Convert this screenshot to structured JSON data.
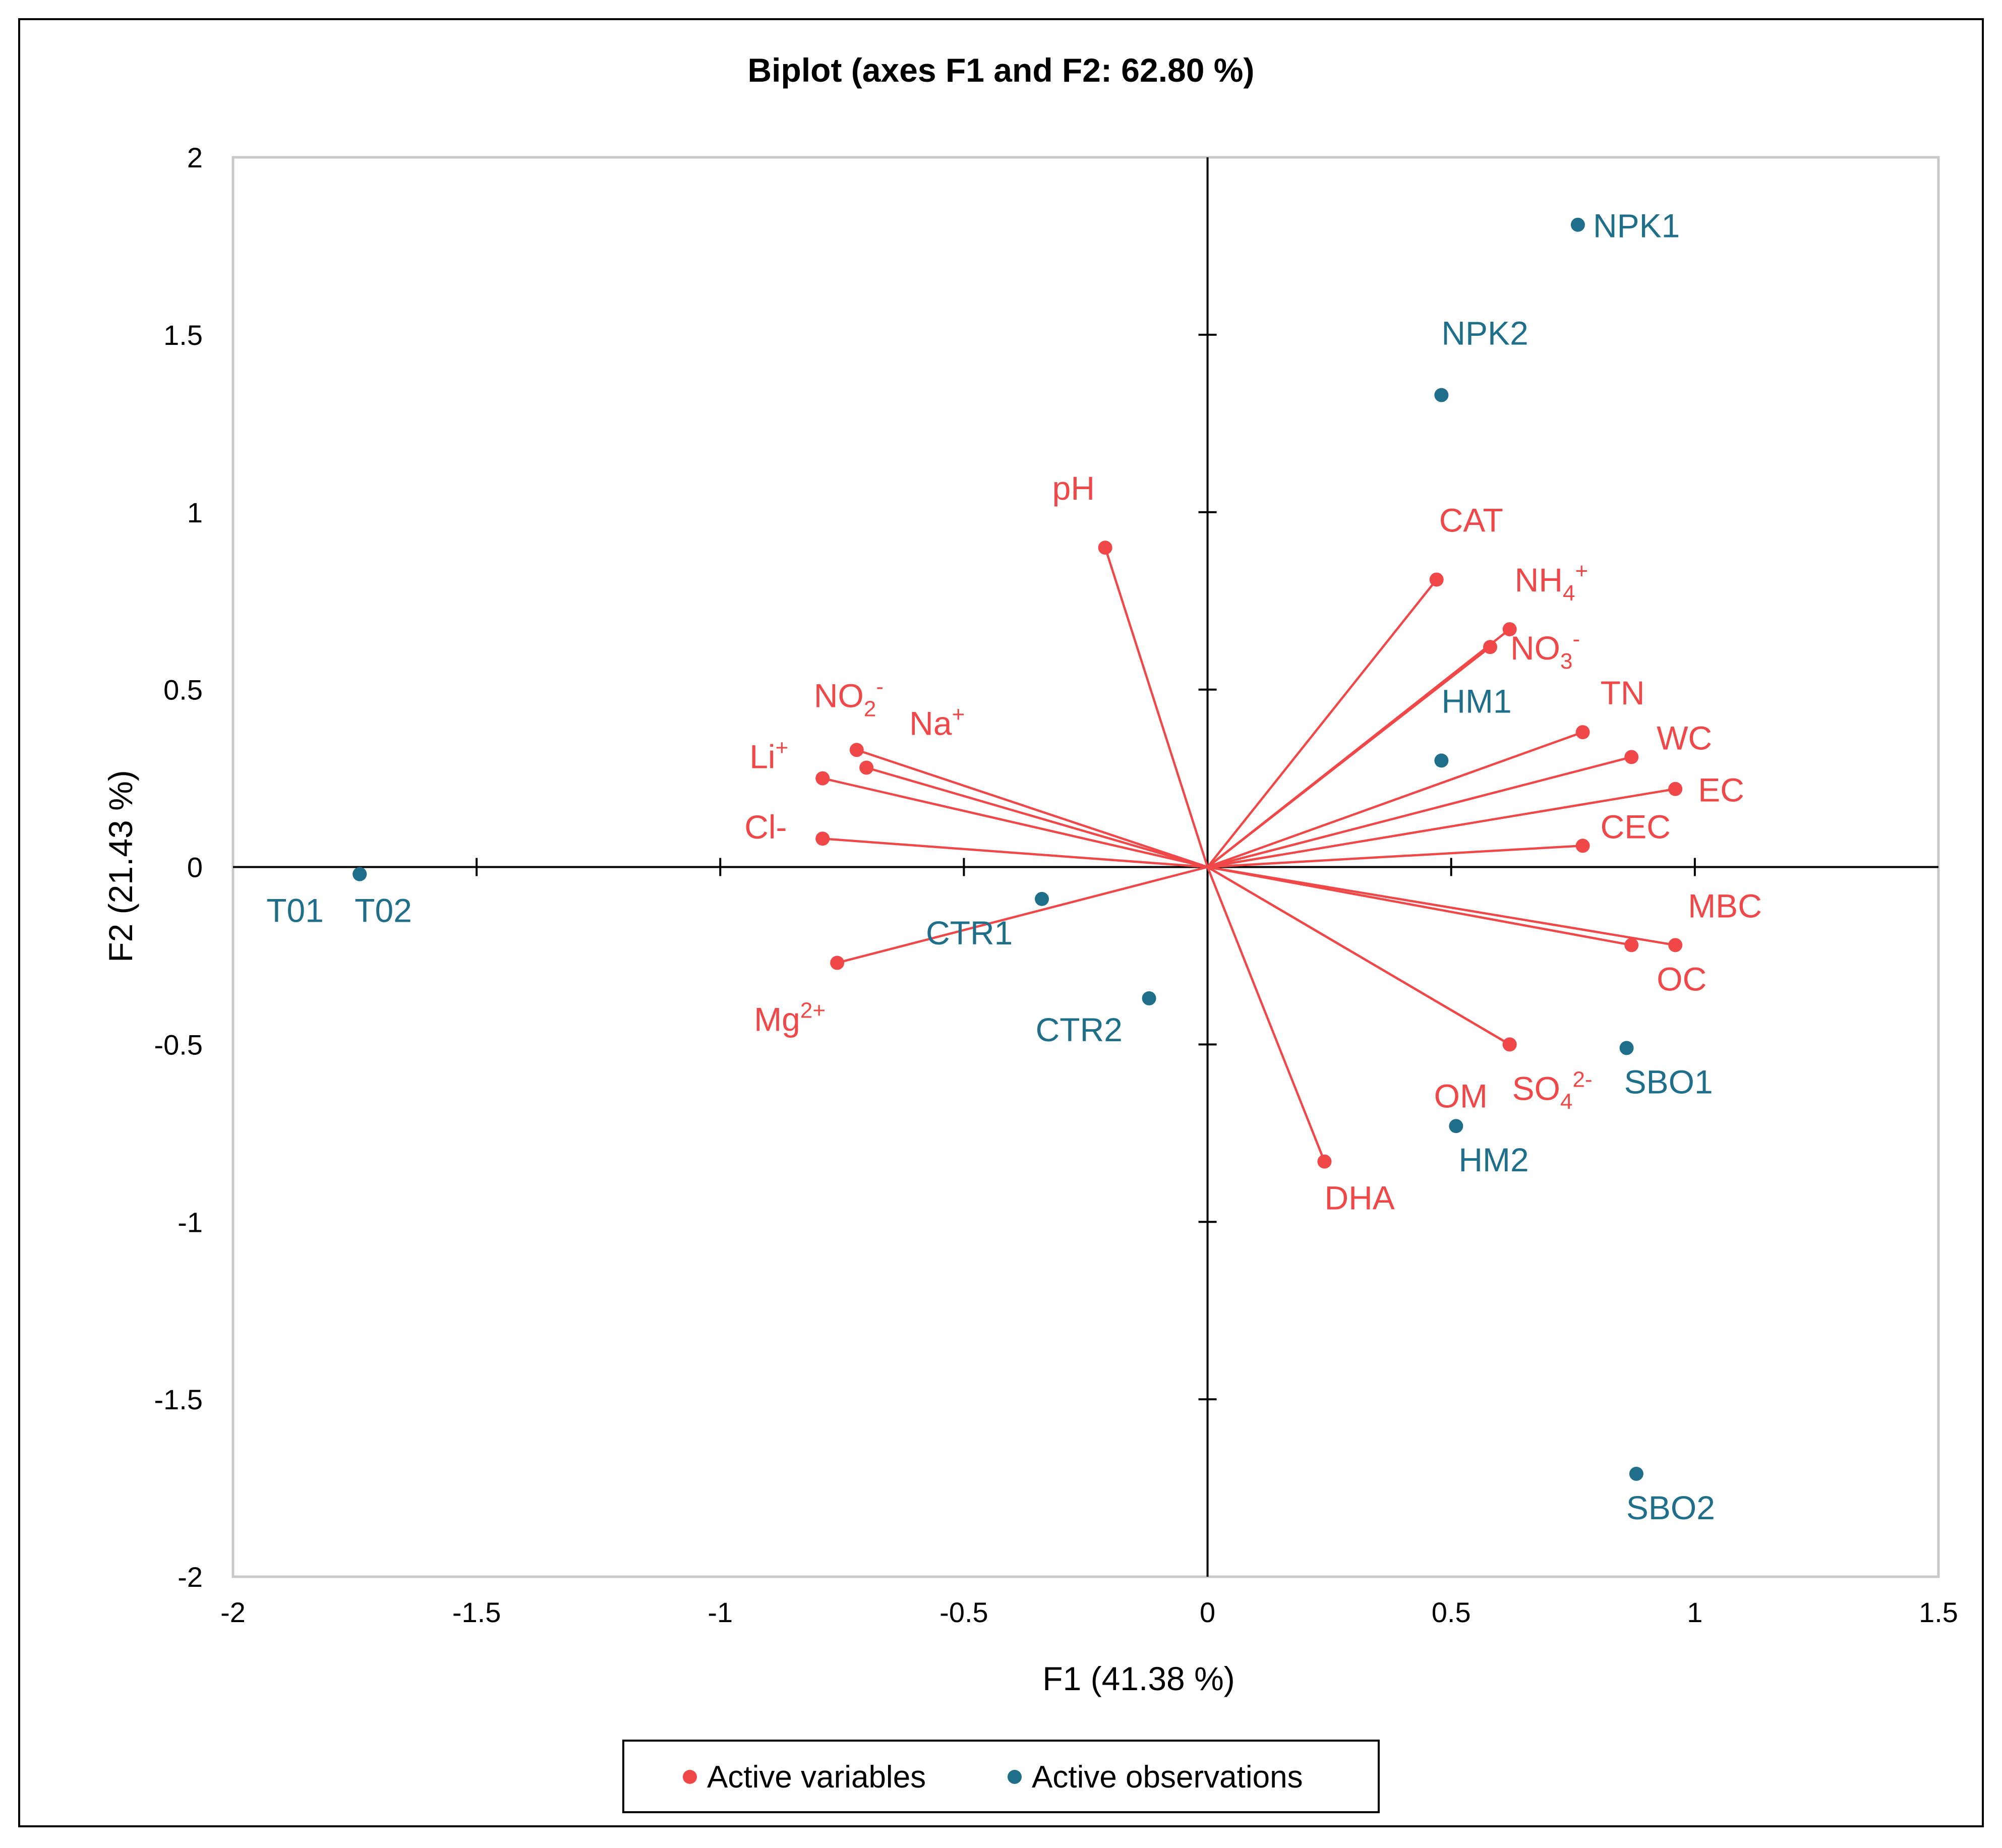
{
  "chart_data": {
    "type": "scatter",
    "title": "Biplot (axes F1 and F2: 62.80 %)",
    "xlabel": "F1 (41.38 %)",
    "ylabel": "F2 (21.43 %)",
    "xlim": [
      -2,
      1.5
    ],
    "ylim": [
      -2,
      2
    ],
    "xticks": [
      -2,
      -1.5,
      -1,
      -0.5,
      0,
      0.5,
      1,
      1.5
    ],
    "yticks": [
      -2,
      -1.5,
      -1,
      -0.5,
      0,
      0.5,
      1,
      1.5,
      2
    ],
    "xtick_labels": [
      "-2",
      "-1.5",
      "-1",
      "-0.5",
      "0",
      "0.5",
      "1",
      "1.5"
    ],
    "ytick_labels": [
      "-2",
      "-1.5",
      "-1",
      "-0.5",
      "0",
      "0.5",
      "1",
      "1.5",
      "2"
    ],
    "grid": false,
    "legend_position": "bottom",
    "colors": {
      "variables": "#f04848",
      "observations": "#1f6f8b",
      "frame": "#c8c8c8"
    },
    "series": [
      {
        "name": "Active variables",
        "vectors": true,
        "points": [
          {
            "label": "pH",
            "base": "pH",
            "x": -0.21,
            "y": 0.9
          },
          {
            "label": "CAT",
            "base": "CAT",
            "x": 0.47,
            "y": 0.81
          },
          {
            "label": "NH4+",
            "base": "NH",
            "sub": "4",
            "sup": "+",
            "x": 0.62,
            "y": 0.67
          },
          {
            "label": "NO3-",
            "base": "NO",
            "sub": "3",
            "sup": "-",
            "x": 0.58,
            "y": 0.62
          },
          {
            "label": "TN",
            "base": "TN",
            "x": 0.77,
            "y": 0.38
          },
          {
            "label": "WC",
            "base": "WC",
            "x": 0.87,
            "y": 0.31
          },
          {
            "label": "EC",
            "base": "EC",
            "x": 0.96,
            "y": 0.22
          },
          {
            "label": "CEC",
            "base": "CEC",
            "x": 0.77,
            "y": 0.06
          },
          {
            "label": "MBC",
            "base": "MBC",
            "x": 0.96,
            "y": -0.22
          },
          {
            "label": "OC",
            "base": "OC",
            "x": 0.87,
            "y": -0.22
          },
          {
            "label": "OM",
            "base": "OM",
            "x": 0.62,
            "y": -0.5
          },
          {
            "label": "SO42-",
            "base": "SO",
            "sub": "4",
            "sup": "2-",
            "x": 0.62,
            "y": -0.5
          },
          {
            "label": "DHA",
            "base": "DHA",
            "x": 0.24,
            "y": -0.83
          },
          {
            "label": "NO2-",
            "base": "NO",
            "sub": "2",
            "sup": "-",
            "x": -0.72,
            "y": 0.33
          },
          {
            "label": "Na+",
            "base": "Na",
            "sup": "+",
            "x": -0.7,
            "y": 0.28
          },
          {
            "label": "Li+",
            "base": "Li",
            "sup": "+",
            "x": -0.79,
            "y": 0.25
          },
          {
            "label": "Cl-",
            "base": "Cl-",
            "x": -0.79,
            "y": 0.08
          },
          {
            "label": "Mg2+",
            "base": "Mg",
            "sup": "2+",
            "x": -0.76,
            "y": -0.27
          }
        ]
      },
      {
        "name": "Active observations",
        "vectors": false,
        "points": [
          {
            "label": "NPK1",
            "x": 0.76,
            "y": 1.81
          },
          {
            "label": "NPK2",
            "x": 0.48,
            "y": 1.33
          },
          {
            "label": "HM1",
            "x": 0.48,
            "y": 0.3
          },
          {
            "label": "T01",
            "x": -1.74,
            "y": -0.02
          },
          {
            "label": "T02",
            "x": -1.74,
            "y": -0.02
          },
          {
            "label": "CTR1",
            "x": -0.34,
            "y": -0.09
          },
          {
            "label": "CTR2",
            "x": -0.12,
            "y": -0.37
          },
          {
            "label": "SBO1",
            "x": 0.86,
            "y": -0.51
          },
          {
            "label": "HM2",
            "x": 0.51,
            "y": -0.73
          },
          {
            "label": "SBO2",
            "x": 0.88,
            "y": -1.71
          }
        ]
      }
    ]
  }
}
